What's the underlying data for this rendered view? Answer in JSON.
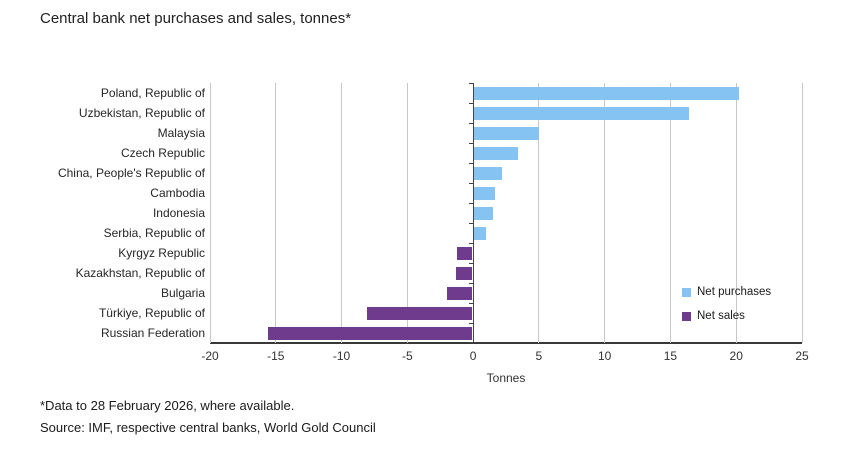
{
  "title": "Central bank net purchases and sales, tonnes*",
  "chart_data": {
    "type": "bar",
    "orientation": "horizontal",
    "title": "Central bank net purchases and sales, tonnes*",
    "categories": [
      "Poland, Republic of",
      "Uzbekistan, Republic of",
      "Malaysia",
      "Czech Republic",
      "China, People's Republic of",
      "Cambodia",
      "Indonesia",
      "Serbia, Republic of",
      "Kyrgyz Republic",
      "Kazakhstan, Republic of",
      "Bulgaria",
      "Türkiye, Republic of",
      "Russian Federation"
    ],
    "values": [
      20.2,
      16.4,
      5.0,
      3.4,
      2.2,
      1.7,
      1.5,
      1.0,
      -1.2,
      -1.3,
      -2.0,
      -8.1,
      -15.6
    ],
    "xlabel": "Tonnes",
    "xlim": [
      -20,
      25
    ],
    "xticks": [
      -20,
      -15,
      -10,
      -5,
      0,
      5,
      10,
      15,
      20,
      25
    ],
    "grid": "vertical-on",
    "legend_position": "right-inside",
    "legend": [
      {
        "label": "Net purchases",
        "color": "#85C3F2"
      },
      {
        "label": "Net sales",
        "color": "#6F3B8D"
      }
    ],
    "colors": {
      "positive": "#85C3F2",
      "negative": "#6F3B8D",
      "gridline": "#c7c7c7",
      "axis": "#454545"
    }
  },
  "footnotes": [
    "*Data to 28 February 2026, where available.",
    "Source: IMF, respective central banks, World Gold Council"
  ]
}
